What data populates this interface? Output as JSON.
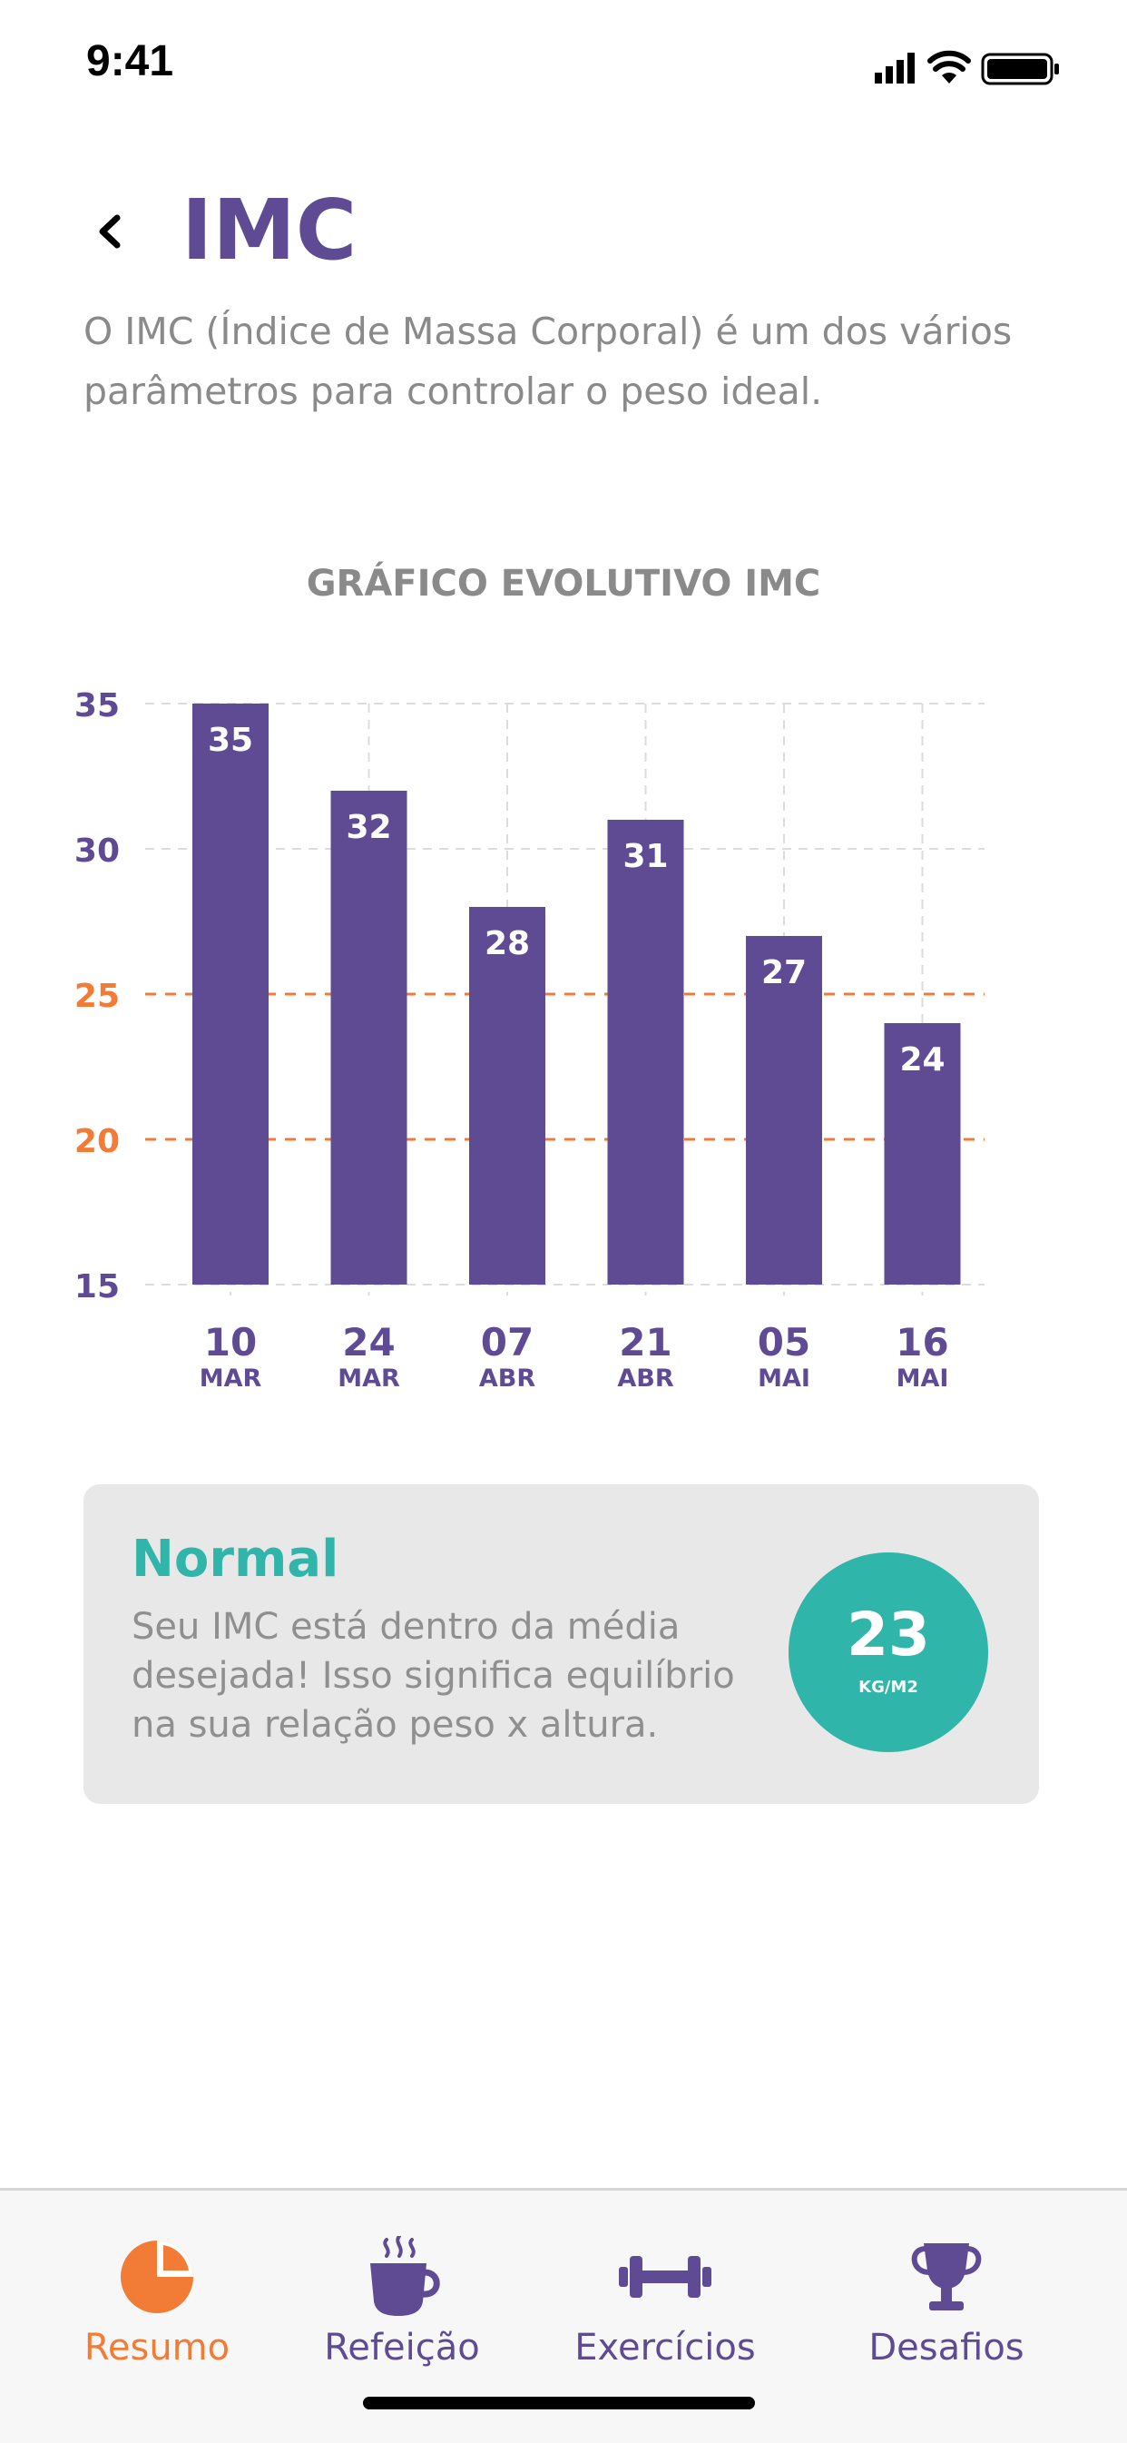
{
  "status_bar": {
    "time": "9:41"
  },
  "header": {
    "title": "IMC",
    "subtitle": "O IMC (Índice de Massa Corporal) é um dos vários parâmetros para controlar o peso ideal."
  },
  "chart_section": {
    "title": "GRÁFICO EVOLUTIVO IMC"
  },
  "chart_data": {
    "type": "bar",
    "title": "GRÁFICO EVOLUTIVO IMC",
    "categories": [
      {
        "day": "10",
        "month": "MAR"
      },
      {
        "day": "24",
        "month": "MAR"
      },
      {
        "day": "07",
        "month": "ABR"
      },
      {
        "day": "21",
        "month": "ABR"
      },
      {
        "day": "05",
        "month": "MAI"
      },
      {
        "day": "16",
        "month": "MAI"
      }
    ],
    "values": [
      35,
      32,
      28,
      31,
      27,
      24
    ],
    "ylim": [
      15,
      35
    ],
    "yticks": [
      35,
      30,
      25,
      20,
      15
    ],
    "reference_lines": [
      25,
      20
    ],
    "bar_color": "#5f4b93",
    "reference_color": "#f27b36",
    "grid": true
  },
  "result_card": {
    "status": "Normal",
    "description": "Seu IMC está dentro da média desejada! Isso significa equilíbrio na sua relação peso x altura.",
    "value": "23",
    "unit": "KG/M2",
    "accent": "#2fb5a9"
  },
  "tab_bar": {
    "items": [
      {
        "label": "Resumo",
        "icon": "pie-chart-icon",
        "active": true
      },
      {
        "label": "Refeição",
        "icon": "coffee-cup-icon",
        "active": false
      },
      {
        "label": "Exercícios",
        "icon": "dumbbell-icon",
        "active": false
      },
      {
        "label": "Desafios",
        "icon": "trophy-icon",
        "active": false
      }
    ]
  },
  "colors": {
    "primary": "#5f4b93",
    "orange": "#f27b36",
    "teal": "#2fb5a9",
    "gray_text": "#8a8a8a"
  }
}
